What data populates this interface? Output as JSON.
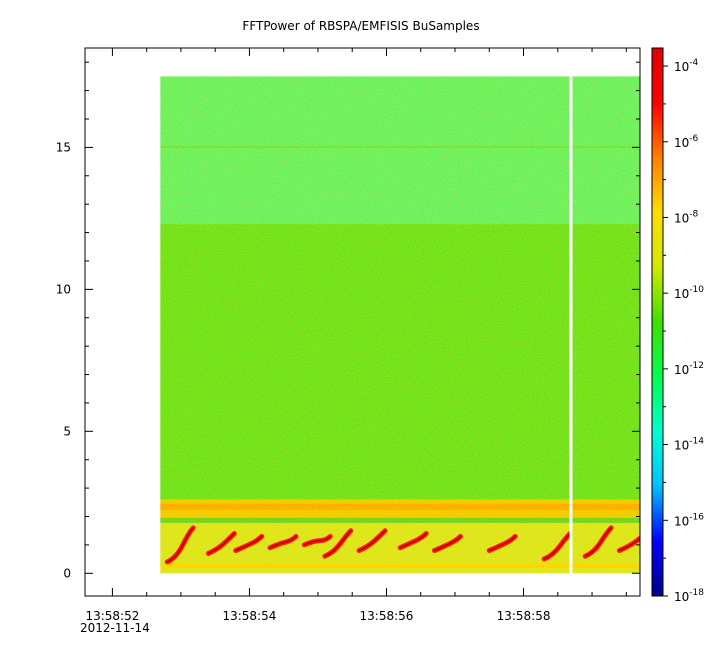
{
  "chart_data": {
    "type": "heatmap",
    "title": "FFTPower of RBSPA/EMFISIS  BuSamples",
    "xlabel": "",
    "ylabel": "",
    "x_tick_labels": [
      "13:58:52",
      "13:58:54",
      "13:58:56",
      "13:58:58"
    ],
    "x_date_label": "2012-11-14",
    "x_range": [
      "13:58:51.6",
      "13:58:59.7"
    ],
    "data_x_range": [
      "13:58:52.7",
      "13:58:59.7"
    ],
    "gap_at": "13:58:58.7",
    "y_ticks": [
      0,
      5,
      10,
      15
    ],
    "ylim": [
      -0.8,
      18.5
    ],
    "data_y_range": [
      0,
      17.5
    ],
    "colorbar": {
      "scale": "log",
      "range": [
        "1e-18",
        "3e-4"
      ],
      "tick_bases": [
        "10",
        "10",
        "10",
        "10",
        "10",
        "10",
        "10",
        "10"
      ],
      "tick_exponents": [
        "-4",
        "-6",
        "-8",
        "-10",
        "-12",
        "-14",
        "-16",
        "-18"
      ],
      "colors": [
        "#00008c",
        "#0000ff",
        "#00bfff",
        "#00ffd0",
        "#00ff50",
        "#40e000",
        "#d0e800",
        "#ffdd00",
        "#ff8000",
        "#ff0000",
        "#e00000"
      ]
    },
    "bands": [
      {
        "y_from": 12.3,
        "y_to": 17.5,
        "level": "1e-12",
        "color": "#00ee66"
      },
      {
        "y_from": 2.6,
        "y_to": 12.3,
        "level": "1e-10",
        "color": "#22dd22"
      },
      {
        "y_from": 1.9,
        "y_to": 2.6,
        "level": "1e-8",
        "color": "#f0c000"
      },
      {
        "y_from": 0,
        "y_to": 1.9,
        "level": "1e-8",
        "color": "#d8e020"
      }
    ],
    "bursts": [
      {
        "t": "13:58:52.8",
        "f_low": 0.4,
        "f_high": 1.6
      },
      {
        "t": "13:58:53.4",
        "f_low": 0.7,
        "f_high": 1.4
      },
      {
        "t": "13:58:53.8",
        "f_low": 0.8,
        "f_high": 1.3
      },
      {
        "t": "13:58:54.3",
        "f_low": 0.9,
        "f_high": 1.3
      },
      {
        "t": "13:58:54.8",
        "f_low": 1.0,
        "f_high": 1.3
      },
      {
        "t": "13:58:55.1",
        "f_low": 0.6,
        "f_high": 1.5
      },
      {
        "t": "13:58:55.6",
        "f_low": 0.8,
        "f_high": 1.5
      },
      {
        "t": "13:58:56.2",
        "f_low": 0.9,
        "f_high": 1.4
      },
      {
        "t": "13:58:56.7",
        "f_low": 0.8,
        "f_high": 1.3
      },
      {
        "t": "13:58:57.5",
        "f_low": 0.8,
        "f_high": 1.3
      },
      {
        "t": "13:58:58.3",
        "f_low": 0.5,
        "f_high": 1.4
      },
      {
        "t": "13:58:58.9",
        "f_low": 0.6,
        "f_high": 1.6
      },
      {
        "t": "13:58:59.4",
        "f_low": 0.8,
        "f_high": 1.4
      }
    ]
  }
}
